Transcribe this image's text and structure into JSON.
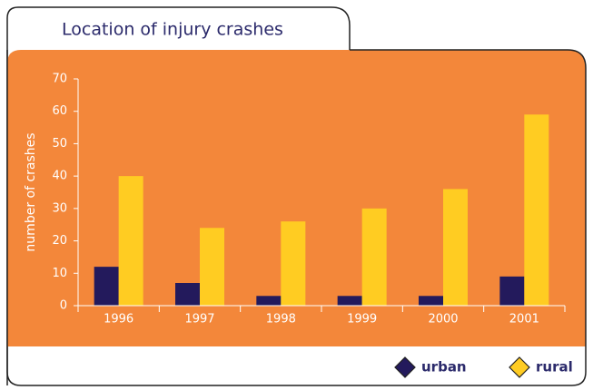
{
  "chart_data": {
    "type": "bar",
    "title": "Location of injury crashes",
    "y_label": "number of crashes",
    "categories": [
      "1996",
      "1997",
      "1998",
      "1999",
      "2000",
      "2001"
    ],
    "series": [
      {
        "name": "urban",
        "color": "#231a5c",
        "values": [
          12,
          7,
          3,
          3,
          3,
          9
        ]
      },
      {
        "name": "rural",
        "color": "#ffcc22",
        "values": [
          40,
          24,
          26,
          30,
          36,
          59
        ]
      }
    ],
    "ylim": [
      0,
      70
    ],
    "yticks": [
      0,
      10,
      20,
      30,
      40,
      50,
      60,
      70
    ],
    "legend": "bottom-right"
  }
}
